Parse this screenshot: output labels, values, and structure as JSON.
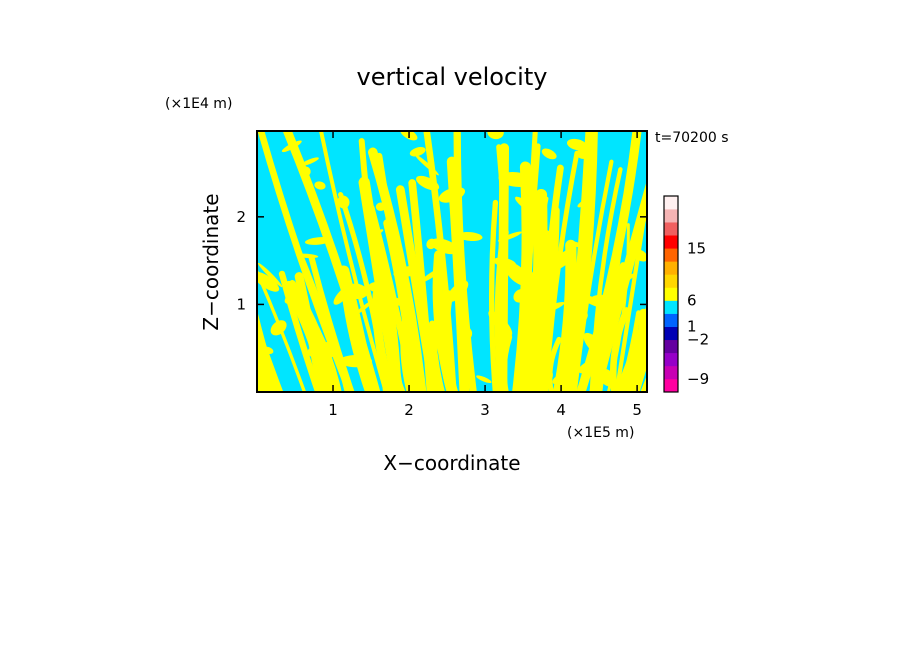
{
  "chart_data": {
    "type": "heatmap",
    "title": "vertical velocity",
    "xlabel": "X−coordinate",
    "ylabel": "Z−coordinate",
    "x_unit": "(×1E5 m)",
    "y_unit": "(×1E4 m)",
    "time_label": "t=70200 s",
    "xlim": [
      0,
      5.13
    ],
    "ylim": [
      0,
      2.98
    ],
    "x_ticks": [
      1,
      2,
      3,
      4,
      5
    ],
    "y_ticks": [
      1,
      2
    ],
    "x_tick_labels": [
      "1",
      "2",
      "3",
      "4",
      "5"
    ],
    "y_tick_labels": [
      "1",
      "2"
    ],
    "field_colors": {
      "updraft": "#ffff00",
      "downdraft": "#00e5ff"
    },
    "colorbar": {
      "colors": [
        "#ff00a0",
        "#c800b4",
        "#9600c8",
        "#6400a0",
        "#0000b4",
        "#0064ff",
        "#00e5ff",
        "#ffff00",
        "#ffd700",
        "#ffb000",
        "#ff6400",
        "#ff0000",
        "#f06060",
        "#f5b4b4",
        "#fff0f0"
      ],
      "label_positions": [
        0.5,
        3.5,
        4.5,
        6.5,
        10.5,
        12.5
      ],
      "labels": [
        "−9",
        "−2",
        "1",
        "6",
        "15",
        ""
      ]
    }
  }
}
